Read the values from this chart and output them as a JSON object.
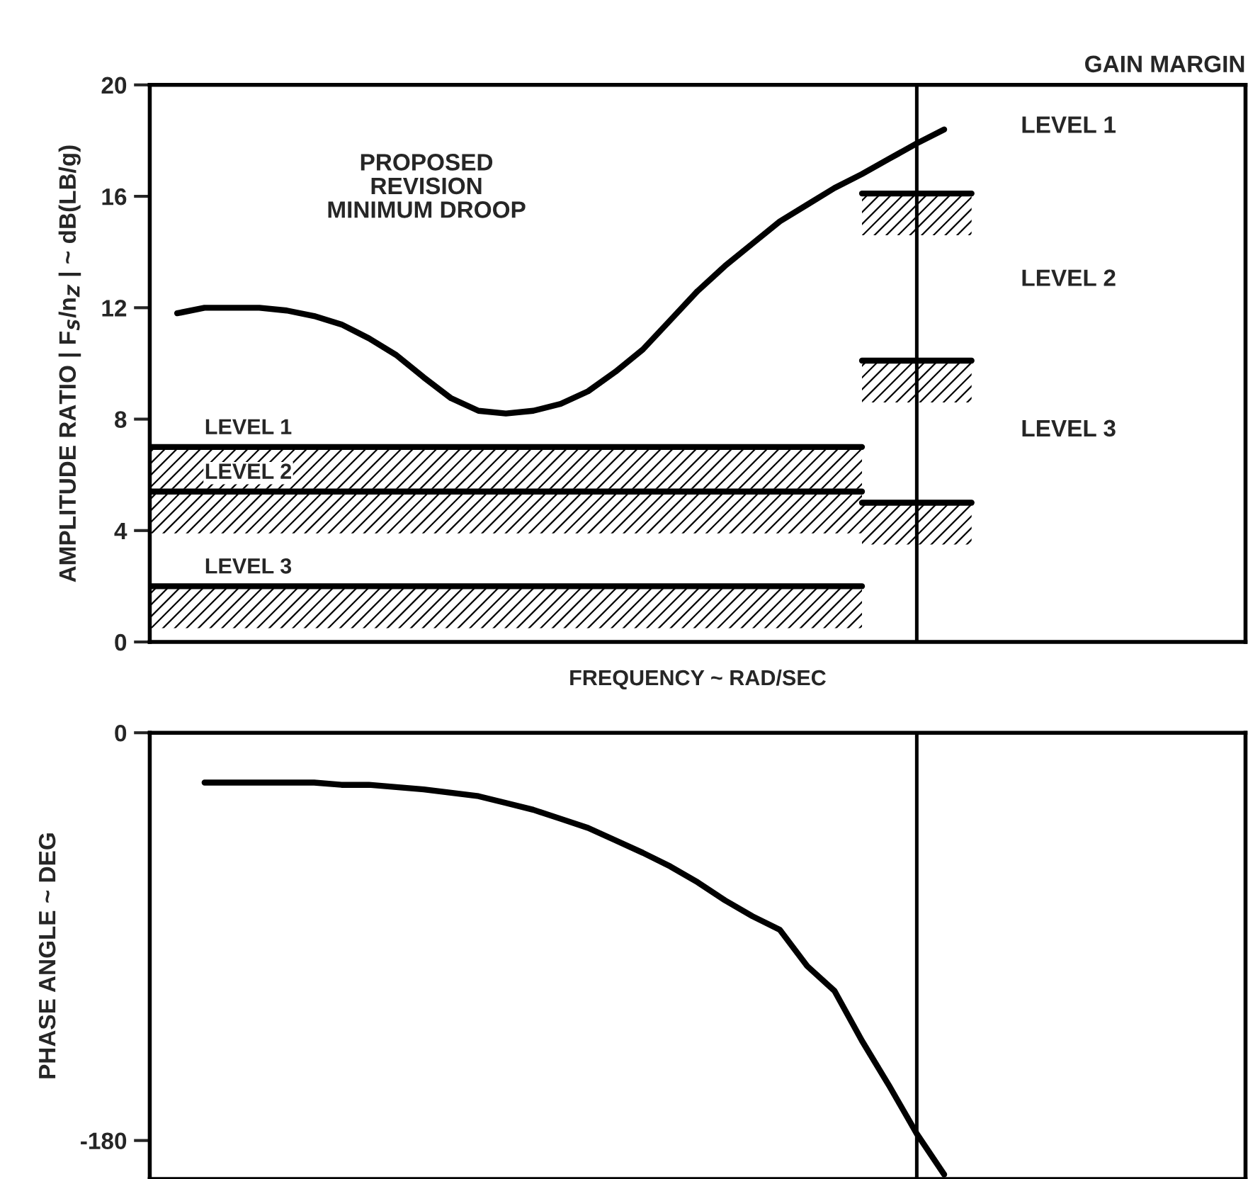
{
  "chart_data": [
    {
      "type": "line",
      "xlabel": "FREQUENCY ~ RAD/SEC",
      "ylabel": "AMPLITUDE RATIO | F$_{S}$/n$_{Z}$ | ~ dB(LB/g)",
      "categories": [
        null,
        null,
        null,
        null,
        null,
        null,
        null,
        null,
        null,
        null,
        null,
        null,
        null,
        null,
        null,
        null,
        null,
        null,
        null,
        null,
        null,
        null,
        null,
        null,
        null,
        null,
        null,
        null,
        null,
        null,
        null,
        null,
        null,
        null,
        null,
        null,
        null,
        null,
        null,
        null,
        null
      ],
      "series": [
        {
          "color": "#000000",
          "values": [
            null,
            11.8,
            12.0,
            12.0,
            12.0,
            11.9,
            11.7,
            11.4,
            10.9,
            10.3,
            9.5,
            8.75,
            8.3,
            8.2,
            8.3,
            8.55,
            9.0,
            9.7,
            10.5,
            11.55,
            12.6,
            13.5,
            14.3,
            15.1,
            15.7,
            16.3,
            16.8,
            17.35,
            17.9,
            18.4,
            null,
            null,
            null,
            null,
            null,
            null,
            null,
            null,
            null,
            null,
            null
          ]
        },
        {
          "name": "LEVEL 1",
          "color": "#000000",
          "values": [
            7.0,
            7.0,
            7.0,
            7.0,
            7.0,
            7.0,
            7.0,
            7.0,
            7.0,
            7.0,
            7.0,
            7.0,
            7.0,
            7.0,
            7.0,
            7.0,
            7.0,
            7.0,
            7.0,
            7.0,
            7.0,
            7.0,
            7.0,
            7.0,
            7.0,
            7.0,
            7.0,
            null,
            null,
            null,
            null,
            null,
            null,
            null,
            null,
            null,
            null,
            null,
            null,
            null,
            null
          ]
        },
        {
          "name": "LEVEL 2",
          "color": "#000000",
          "values": [
            5.4,
            5.4,
            5.4,
            5.4,
            5.4,
            5.4,
            5.4,
            5.4,
            5.4,
            5.4,
            5.4,
            5.4,
            5.4,
            5.4,
            5.4,
            5.4,
            5.4,
            5.4,
            5.4,
            5.4,
            5.4,
            5.4,
            5.4,
            5.4,
            5.4,
            5.4,
            5.4,
            null,
            null,
            null,
            null,
            null,
            null,
            null,
            null,
            null,
            null,
            null,
            null,
            null,
            null
          ]
        },
        {
          "name": "LEVEL 3",
          "color": "#000000",
          "values": [
            2.0,
            2.0,
            2.0,
            2.0,
            2.0,
            2.0,
            2.0,
            2.0,
            2.0,
            2.0,
            2.0,
            2.0,
            2.0,
            2.0,
            2.0,
            2.0,
            2.0,
            2.0,
            2.0,
            2.0,
            2.0,
            2.0,
            2.0,
            2.0,
            2.0,
            2.0,
            2.0,
            null,
            null,
            null,
            null,
            null,
            null,
            null,
            null,
            null,
            null,
            null,
            null,
            null,
            null
          ]
        },
        {
          "color": "#000000",
          "values": [
            null,
            null,
            null,
            null,
            null,
            null,
            null,
            null,
            null,
            null,
            null,
            null,
            null,
            null,
            null,
            null,
            null,
            null,
            null,
            null,
            null,
            null,
            null,
            null,
            null,
            null,
            16.1,
            16.1,
            16.1,
            16.1,
            16.1,
            null,
            null,
            null,
            null,
            null,
            null,
            null,
            null,
            null,
            null
          ]
        },
        {
          "color": "#000000",
          "values": [
            null,
            null,
            null,
            null,
            null,
            null,
            null,
            null,
            null,
            null,
            null,
            null,
            null,
            null,
            null,
            null,
            null,
            null,
            null,
            null,
            null,
            null,
            null,
            null,
            null,
            null,
            10.1,
            10.1,
            10.1,
            10.1,
            10.1,
            null,
            null,
            null,
            null,
            null,
            null,
            null,
            null,
            null,
            null
          ]
        },
        {
          "color": "#000000",
          "values": [
            null,
            null,
            null,
            null,
            null,
            null,
            null,
            null,
            null,
            null,
            null,
            null,
            null,
            null,
            null,
            null,
            null,
            null,
            null,
            null,
            null,
            null,
            null,
            null,
            null,
            null,
            5.0,
            5.0,
            5.0,
            5.0,
            5.0,
            null,
            null,
            null,
            null,
            null,
            null,
            null,
            null,
            null,
            null
          ]
        }
      ],
      "ylim": [
        0,
        20
      ],
      "yticks": [
        0,
        4,
        8,
        12,
        16,
        20
      ],
      "tick_labels": "y",
      "annotations": [
        "PROPOSED\nREVISION\nMINIMUM DROOP",
        "GAIN MARGIN",
        "LEVEL 1",
        "LEVEL 2",
        "LEVEL 3"
      ]
    },
    {
      "type": "line",
      "ylabel": "PHASE ANGLE ~ DEG",
      "categories": [
        null,
        null,
        null,
        null,
        null,
        null,
        null,
        null,
        null,
        null,
        null,
        null,
        null,
        null,
        null,
        null,
        null,
        null,
        null,
        null,
        null,
        null,
        null,
        null,
        null,
        null,
        null,
        null,
        null,
        null,
        null,
        null,
        null,
        null,
        null,
        null,
        null,
        null,
        null,
        null,
        null
      ],
      "series": [
        {
          "color": "#000000",
          "values": [
            null,
            null,
            -22,
            -22,
            -22,
            -22,
            -22,
            -23,
            -23,
            -24,
            -25,
            -26.5,
            -28,
            -31,
            -34,
            -38,
            -42,
            -47.5,
            -53,
            -59,
            -66,
            -74,
            -81,
            -87,
            -103,
            -114,
            -136,
            -156,
            -177,
            -195,
            null,
            null,
            null,
            null,
            null,
            null,
            null,
            null,
            null,
            null,
            null
          ]
        }
      ],
      "ylim": [
        -197,
        0
      ],
      "yticks": [
        -180,
        0
      ],
      "tick_labels": "y"
    }
  ]
}
